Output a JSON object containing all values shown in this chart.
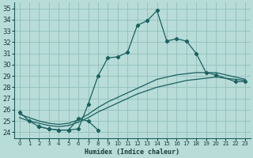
{
  "bg_color": "#b8dcd8",
  "grid_color": "#90c0bc",
  "line_color": "#1a6060",
  "xlabel": "Humidex (Indice chaleur)",
  "xlim": [
    -0.5,
    23.5
  ],
  "ylim": [
    23.5,
    35.5
  ],
  "xticks": [
    0,
    1,
    2,
    3,
    4,
    5,
    6,
    7,
    8,
    9,
    10,
    11,
    12,
    13,
    14,
    15,
    16,
    17,
    18,
    19,
    20,
    21,
    22,
    23
  ],
  "yticks": [
    24,
    25,
    26,
    27,
    28,
    29,
    30,
    31,
    32,
    33,
    34,
    35
  ],
  "curve1_x": [
    0,
    1,
    2,
    3,
    4,
    5,
    6,
    7,
    8,
    9,
    10,
    11,
    12,
    13,
    14,
    15,
    16,
    17,
    18,
    19,
    20,
    22,
    23
  ],
  "curve1_y": [
    25.8,
    25.0,
    24.5,
    24.3,
    24.2,
    24.2,
    24.3,
    26.5,
    29.0,
    30.6,
    30.7,
    31.1,
    33.5,
    33.9,
    34.8,
    32.1,
    32.3,
    32.1,
    31.0,
    29.3,
    29.1,
    28.5,
    28.5
  ],
  "curve2_x": [
    2,
    3,
    4,
    5,
    6,
    7,
    8
  ],
  "curve2_y": [
    24.5,
    24.3,
    24.2,
    24.2,
    25.2,
    25.0,
    24.2
  ],
  "curve3_x": [
    0,
    1,
    2,
    3,
    4,
    5,
    6,
    7,
    8,
    9,
    10,
    11,
    12,
    13,
    14,
    15,
    16,
    17,
    18,
    19,
    20,
    21,
    22,
    23
  ],
  "curve3_y": [
    25.3,
    25.0,
    24.8,
    24.6,
    24.5,
    24.6,
    24.9,
    25.3,
    25.8,
    26.2,
    26.6,
    27.0,
    27.4,
    27.7,
    28.0,
    28.2,
    28.4,
    28.6,
    28.7,
    28.8,
    28.9,
    28.8,
    28.7,
    28.6
  ],
  "curve4_x": [
    0,
    1,
    2,
    3,
    4,
    5,
    6,
    7,
    8,
    9,
    10,
    11,
    12,
    13,
    14,
    15,
    16,
    17,
    18,
    19,
    20,
    21,
    22,
    23
  ],
  "curve4_y": [
    25.6,
    25.3,
    25.0,
    24.8,
    24.7,
    24.8,
    25.1,
    25.6,
    26.2,
    26.7,
    27.1,
    27.5,
    27.9,
    28.3,
    28.7,
    28.9,
    29.1,
    29.2,
    29.3,
    29.3,
    29.3,
    29.1,
    28.9,
    28.7
  ]
}
